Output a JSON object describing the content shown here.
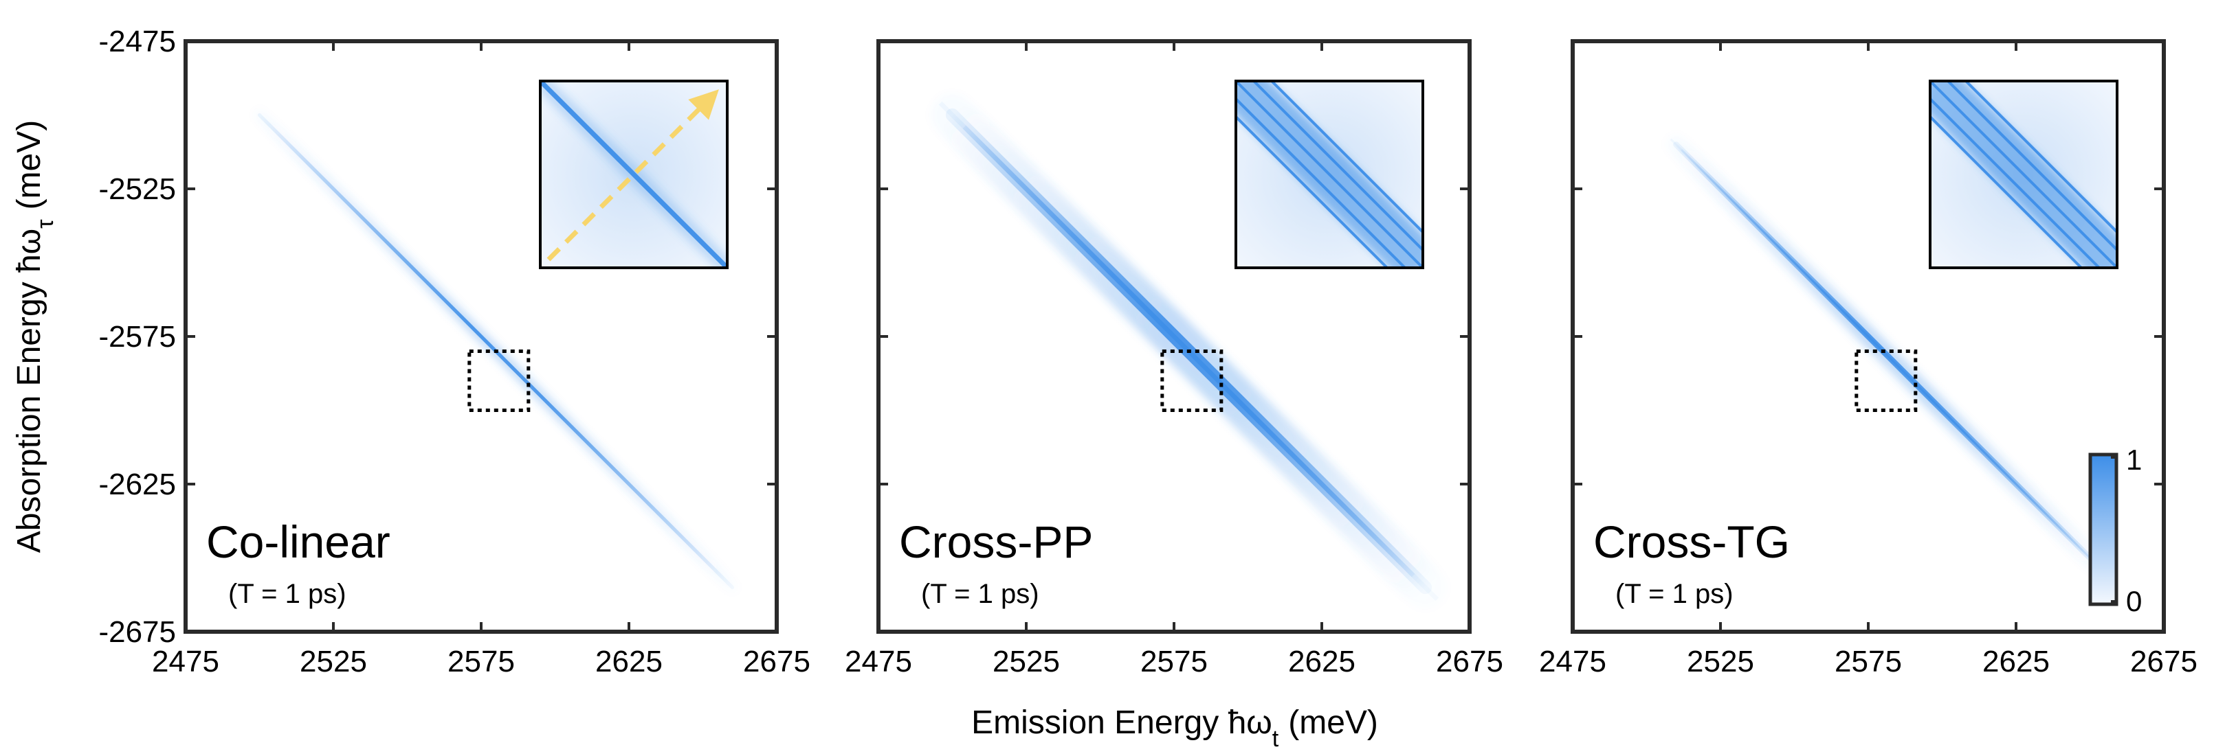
{
  "chart_data": {
    "type": "heatmap",
    "xlabel": "Emission Energy ħω",
    "xlabel_sub": "t",
    "xlabel_unit": "(meV)",
    "ylabel": "Absorption Energy ħω",
    "ylabel_sub": "τ",
    "ylabel_unit": "(meV)",
    "xlim": [
      2475,
      2675
    ],
    "ylim": [
      -2675,
      -2475
    ],
    "xticks": [
      "2475",
      "2525",
      "2575",
      "2625",
      "2675"
    ],
    "yticks": [
      "-2475",
      "-2525",
      "-2575",
      "-2625",
      "-2675"
    ],
    "zoom_window": {
      "x": [
        2571,
        2591
      ],
      "y": [
        -2600,
        -2580
      ]
    },
    "colorbar": {
      "min": "0",
      "max": "1",
      "color_low": "#f4f8fe",
      "color_high": "#3d8ee8"
    },
    "accent_colors": {
      "diagonal": "#3d8ee8",
      "arrow": "#f7d56b",
      "frame": "#2a2a2a"
    },
    "panels": [
      {
        "label": "Co-linear",
        "sublabel": "(T = 1 ps)",
        "diag_start": 2500,
        "diag_end": 2660,
        "width_meV": 1.2,
        "multi": false,
        "arrow": true,
        "inset_lines": 1
      },
      {
        "label": "Cross-PP",
        "sublabel": "(T = 1 ps)",
        "diag_start": 2500,
        "diag_end": 2660,
        "width_meV": 4.5,
        "multi": true,
        "arrow": false,
        "inset_lines": 5
      },
      {
        "label": "Cross-TG",
        "sublabel": "(T = 1 ps)",
        "diag_start": 2510,
        "diag_end": 2655,
        "width_meV": 2.0,
        "multi": true,
        "arrow": false,
        "inset_lines": 5
      }
    ]
  }
}
